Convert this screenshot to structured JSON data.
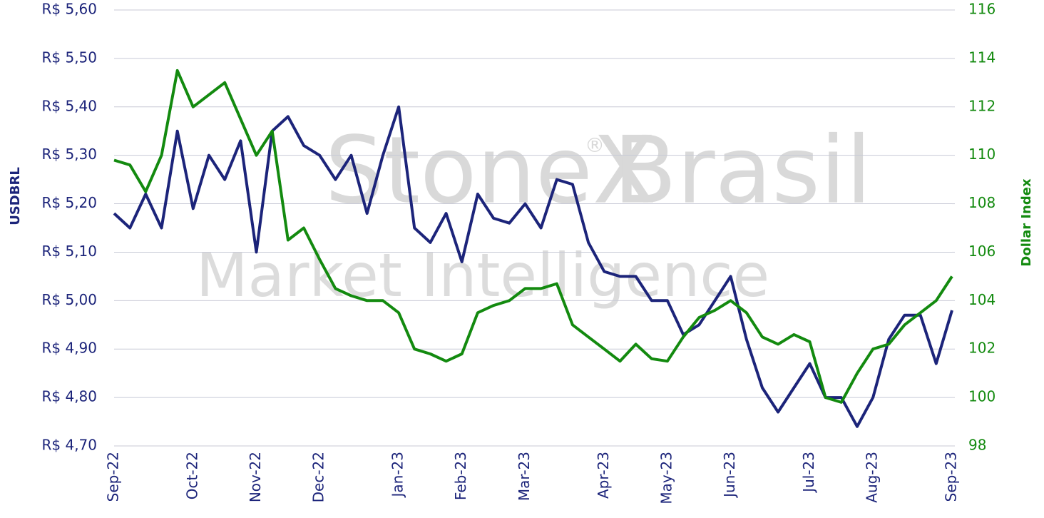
{
  "chart_data": {
    "type": "line",
    "watermark": [
      "StoneX",
      "®",
      "Brasil",
      "Market Intelligence"
    ],
    "y_label": "USDBRL",
    "y2_label": "Dollar Index",
    "categories": [
      "Sep-22",
      null,
      null,
      null,
      null,
      "Oct-22",
      null,
      null,
      null,
      "Nov-22",
      null,
      null,
      null,
      "Dec-22",
      null,
      null,
      null,
      null,
      "Jan-23",
      null,
      null,
      null,
      "Feb-23",
      null,
      null,
      null,
      "Mar-23",
      null,
      null,
      null,
      null,
      "Apr-23",
      null,
      null,
      null,
      "May-23",
      null,
      null,
      null,
      "Jun-23",
      null,
      null,
      null,
      null,
      "Jul-23",
      null,
      null,
      null,
      "Aug-23",
      null,
      null,
      null,
      null,
      "Sep-23"
    ],
    "series": [
      {
        "name": "USDBRL",
        "color": "#1c247a",
        "axis": "y",
        "values": [
          5.18,
          5.15,
          5.22,
          5.15,
          5.35,
          5.19,
          5.3,
          5.25,
          5.33,
          5.1,
          5.35,
          5.38,
          5.32,
          5.3,
          5.25,
          5.3,
          5.18,
          5.3,
          5.4,
          5.15,
          5.12,
          5.18,
          5.08,
          5.22,
          5.17,
          5.16,
          5.2,
          5.15,
          5.25,
          5.24,
          5.12,
          5.06,
          5.05,
          5.05,
          5.0,
          5.0,
          4.93,
          4.95,
          5.0,
          5.05,
          4.92,
          4.82,
          4.77,
          4.82,
          4.87,
          4.8,
          4.8,
          4.74,
          4.8,
          4.92,
          4.97,
          4.97,
          4.87,
          4.98
        ]
      },
      {
        "name": "Dollar Index",
        "color": "#138a0f",
        "axis": "y2",
        "values": [
          109.8,
          109.6,
          108.5,
          110.0,
          113.5,
          112.0,
          112.5,
          113.0,
          111.5,
          110.0,
          111.0,
          106.5,
          107.0,
          105.7,
          104.5,
          104.2,
          104.0,
          104.0,
          103.5,
          102.0,
          101.8,
          101.5,
          101.8,
          103.5,
          103.8,
          104.0,
          104.5,
          104.5,
          104.7,
          103.0,
          102.5,
          102.0,
          101.5,
          102.2,
          101.6,
          101.5,
          102.5,
          103.3,
          103.6,
          104.0,
          103.5,
          102.5,
          102.2,
          102.6,
          102.3,
          100.0,
          99.8,
          101.0,
          102.0,
          102.2,
          103.0,
          103.5,
          104.0,
          105.0
        ]
      }
    ],
    "ylim": [
      4.7,
      5.6
    ],
    "yticks": [
      {
        "value": 4.7,
        "label": "R$ 4,70"
      },
      {
        "value": 4.8,
        "label": "R$ 4,80"
      },
      {
        "value": 4.9,
        "label": "R$ 4,90"
      },
      {
        "value": 5.0,
        "label": "R$ 5,00"
      },
      {
        "value": 5.1,
        "label": "R$ 5,10"
      },
      {
        "value": 5.2,
        "label": "R$ 5,20"
      },
      {
        "value": 5.3,
        "label": "R$ 5,30"
      },
      {
        "value": 5.4,
        "label": "R$ 5,40"
      },
      {
        "value": 5.5,
        "label": "R$ 5,50"
      },
      {
        "value": 5.6,
        "label": "R$ 5,60"
      }
    ],
    "y2lim": [
      98,
      116
    ],
    "y2ticks": [
      98,
      100,
      102,
      104,
      106,
      108,
      110,
      112,
      114,
      116
    ],
    "grid": true
  }
}
